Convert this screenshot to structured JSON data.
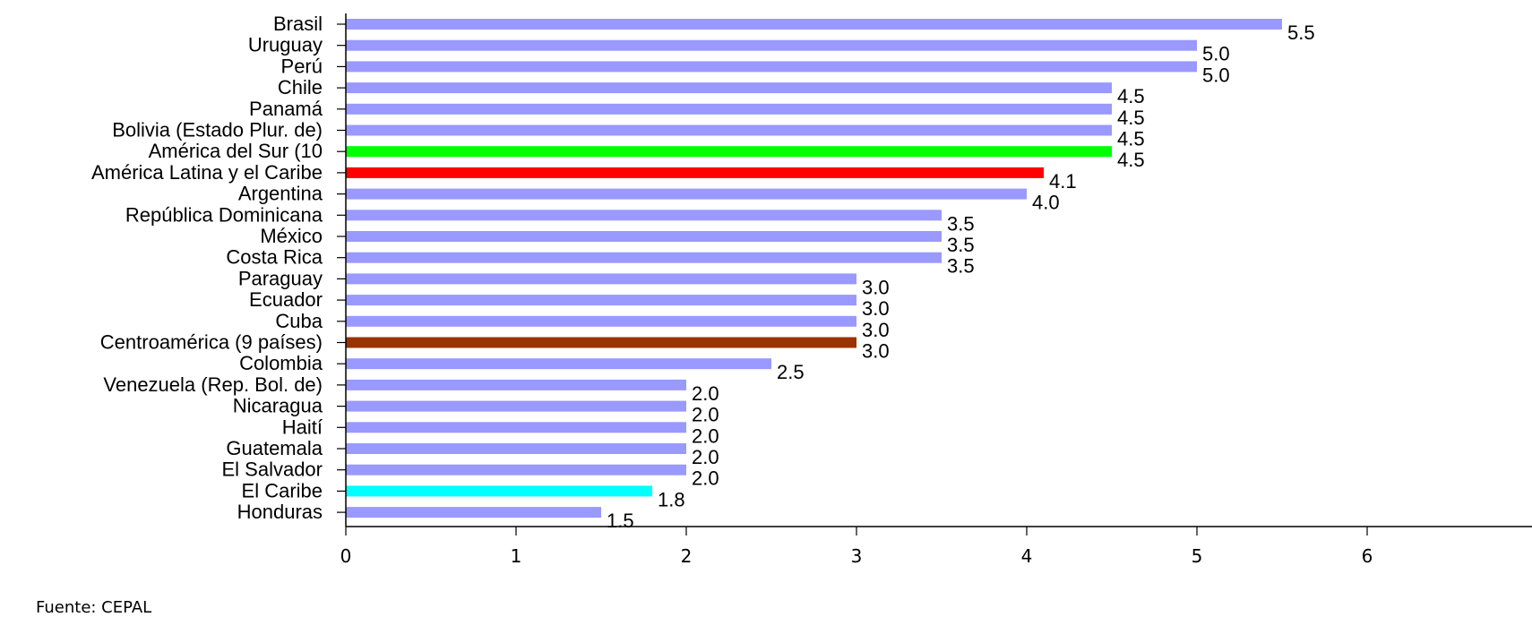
{
  "source_note": "Fuente: CEPAL",
  "chart_data": {
    "type": "bar",
    "orientation": "horizontal",
    "title": "",
    "xlabel": "",
    "ylabel": "",
    "xlim": [
      0,
      6
    ],
    "x_ticks": [
      0,
      1,
      2,
      3,
      4,
      5,
      6
    ],
    "grid": false,
    "categories": [
      "Brasil",
      "Uruguay",
      "Perú",
      "Chile",
      "Panamá",
      "Bolivia (Estado Plur. de)",
      "América del Sur (10",
      "América Latina y el Caribe",
      "Argentina",
      "República Dominicana",
      "México",
      "Costa Rica",
      "Paraguay",
      "Ecuador",
      "Cuba",
      "Centroamérica (9 países)",
      "Colombia",
      "Venezuela (Rep. Bol. de)",
      "Nicaragua",
      "Haití",
      "Guatemala",
      "El Salvador",
      "El Caribe",
      "Honduras"
    ],
    "values": [
      5.5,
      5.0,
      5.0,
      4.5,
      4.5,
      4.5,
      4.5,
      4.1,
      4.0,
      3.5,
      3.5,
      3.5,
      3.0,
      3.0,
      3.0,
      3.0,
      2.5,
      2.0,
      2.0,
      2.0,
      2.0,
      2.0,
      1.8,
      1.5
    ],
    "value_labels": [
      "5.5",
      "5.0",
      "5.0",
      "4.5",
      "4.5",
      "4.5",
      "4.5",
      "4.1",
      "4.0",
      "3.5",
      "3.5",
      "3.5",
      "3.0",
      "3.0",
      "3.0",
      "3.0",
      "2.5",
      "2.0",
      "2.0",
      "2.0",
      "2.0",
      "2.0",
      "1.8",
      "1.5"
    ],
    "colors": {
      "default": "#9999ff",
      "América del Sur (10": "#00ff00",
      "América Latina y el Caribe": "#ff0000",
      "Centroamérica (9 países)": "#993300",
      "El Caribe": "#00ffff"
    }
  }
}
